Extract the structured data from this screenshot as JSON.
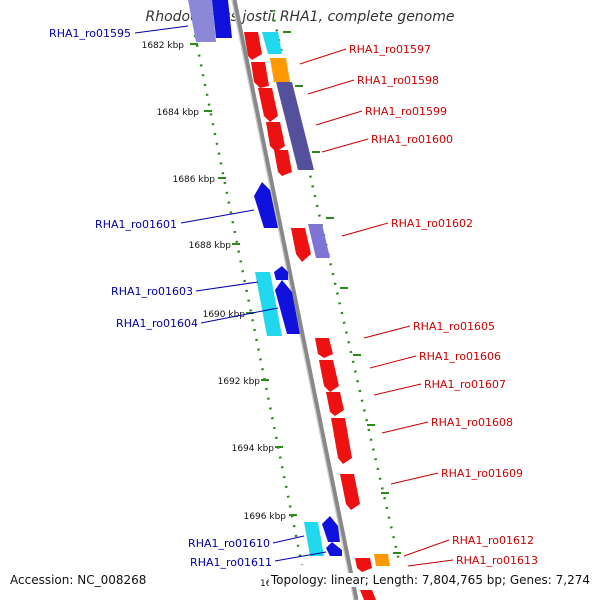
{
  "title": "Rhodococcus jostii RHA1, complete genome",
  "footer": {
    "accession": "Accession: NC_008268",
    "topology": "Topology: linear; Length: 7,804,765 bp; Genes: 7,274"
  },
  "ticks": [
    {
      "label": "1682 kbp",
      "kbp": 1682
    },
    {
      "label": "1684 kbp",
      "kbp": 1684
    },
    {
      "label": "1686 kbp",
      "kbp": 1686
    },
    {
      "label": "1688 kbp",
      "kbp": 1688
    },
    {
      "label": "1690 kbp",
      "kbp": 1690
    },
    {
      "label": "1692 kbp",
      "kbp": 1692
    },
    {
      "label": "1694 kbp",
      "kbp": 1694
    },
    {
      "label": "1696 kbp",
      "kbp": 1696
    },
    {
      "label": "16",
      "kbp": 1698
    }
  ],
  "left_labels": [
    {
      "text": "RHA1_ro01595"
    },
    {
      "text": "RHA1_ro01601"
    },
    {
      "text": "RHA1_ro01603"
    },
    {
      "text": "RHA1_ro01604"
    },
    {
      "text": "RHA1_ro01610"
    },
    {
      "text": "RHA1_ro01611"
    }
  ],
  "right_labels": [
    {
      "text": "RHA1_ro01597"
    },
    {
      "text": "RHA1_ro01598"
    },
    {
      "text": "RHA1_ro01599"
    },
    {
      "text": "RHA1_ro01600"
    },
    {
      "text": "RHA1_ro01602"
    },
    {
      "text": "RHA1_ro01605"
    },
    {
      "text": "RHA1_ro01606"
    },
    {
      "text": "RHA1_ro01607"
    },
    {
      "text": "RHA1_ro01608"
    },
    {
      "text": "RHA1_ro01609"
    },
    {
      "text": "RHA1_ro01612"
    },
    {
      "text": "RHA1_ro01613"
    }
  ],
  "colors": {
    "reverse_label": "#0000aa",
    "forward_label": "#cc0000",
    "red_gene": "#ee1111",
    "blue_gene": "#1111dd",
    "cyan_gene": "#22d8ee",
    "orange_gene": "#ff9900",
    "purple_gene": "#55509c",
    "tick": "#2b8a1a",
    "backbone": "#888888"
  }
}
